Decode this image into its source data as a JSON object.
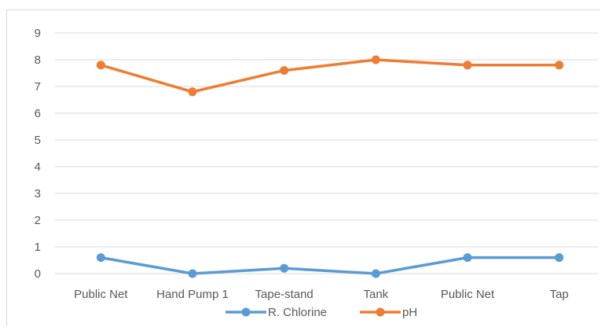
{
  "chart_data": {
    "type": "line",
    "title": "",
    "xlabel": "",
    "ylabel": "",
    "categories": [
      "Public Net",
      "Hand Pump 1",
      "Tape-stand",
      "Tank",
      "Public Net",
      "Tap"
    ],
    "yticks": [
      "0",
      "1",
      "2",
      "3",
      "4",
      "5",
      "6",
      "7",
      "8",
      "9"
    ],
    "ylim": [
      0,
      9
    ],
    "grid": true,
    "legend_position": "bottom",
    "series": [
      {
        "name": "R. Chlorine",
        "color": "#5b9bd5",
        "values": [
          0.6,
          0,
          0.2,
          0,
          0.6,
          0.6
        ]
      },
      {
        "name": "pH",
        "color": "#ed7d31",
        "values": [
          7.8,
          6.8,
          7.6,
          8.0,
          7.8,
          7.8
        ]
      }
    ]
  }
}
